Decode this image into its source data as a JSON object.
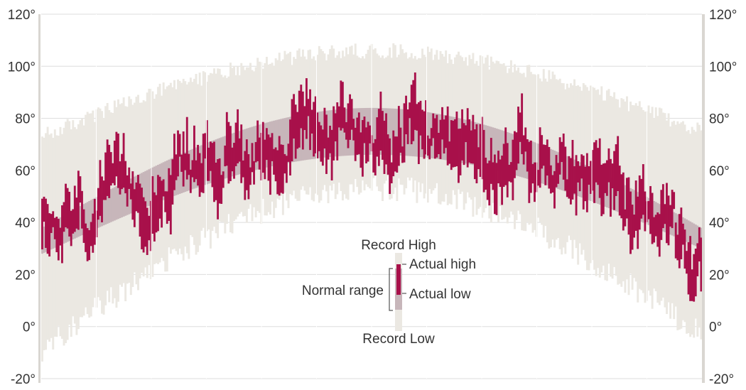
{
  "chart_data": {
    "type": "bar",
    "title": "",
    "xlabel": "",
    "ylabel": "",
    "ylim": [
      -20,
      120
    ],
    "y_ticks": [
      "120°",
      "100°",
      "80°",
      "60°",
      "40°",
      "20°",
      "0°",
      "-20°"
    ],
    "y_tick_values": [
      120,
      100,
      80,
      60,
      40,
      20,
      0,
      -20
    ],
    "grid": true,
    "months": 12,
    "num_days": 365,
    "colors": {
      "record": "#ebe8e2",
      "normal": "#c7b6ba",
      "actual": "#a8104a",
      "grid": "#ffffff",
      "axis": "#d9d6d1",
      "text": "#333333"
    },
    "normal_low_endpoints": [
      28,
      66,
      30
    ],
    "normal_high_endpoints": [
      38,
      84,
      38
    ],
    "record_low_endpoints": [
      -4,
      58,
      2
    ],
    "record_high_endpoints": [
      70,
      103,
      72
    ],
    "actual_series_note": "",
    "legend": {
      "record_high": "Record High",
      "record_low": "Record Low",
      "normal_range": "Normal range",
      "actual_high": "Actual high",
      "actual_low": "Actual low"
    }
  }
}
